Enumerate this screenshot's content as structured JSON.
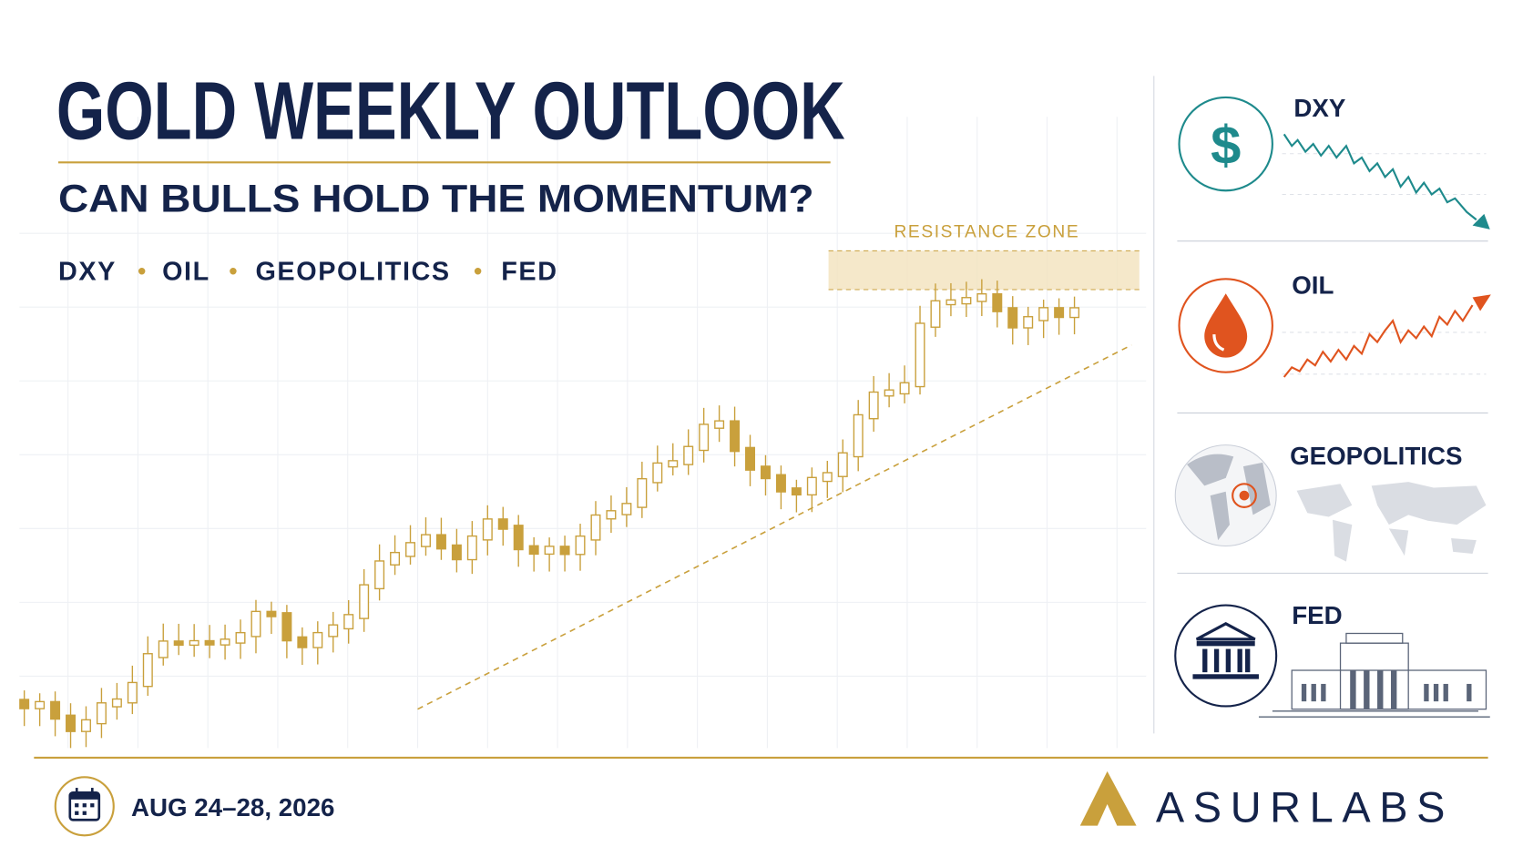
{
  "header": {
    "title": "GOLD WEEKLY OUTLOOK",
    "subtitle": "CAN BULLS HOLD THE MOMENTUM?",
    "topics": [
      "DXY",
      "OIL",
      "GEOPOLITICS",
      "FED"
    ]
  },
  "chart": {
    "annotation": "RESISTANCE ZONE"
  },
  "drivers": [
    "DXY",
    "OIL",
    "GEOPOLITICS",
    "FED"
  ],
  "footer": {
    "date": "AUG 24–28, 2026",
    "brand": "ASURLABS"
  }
}
